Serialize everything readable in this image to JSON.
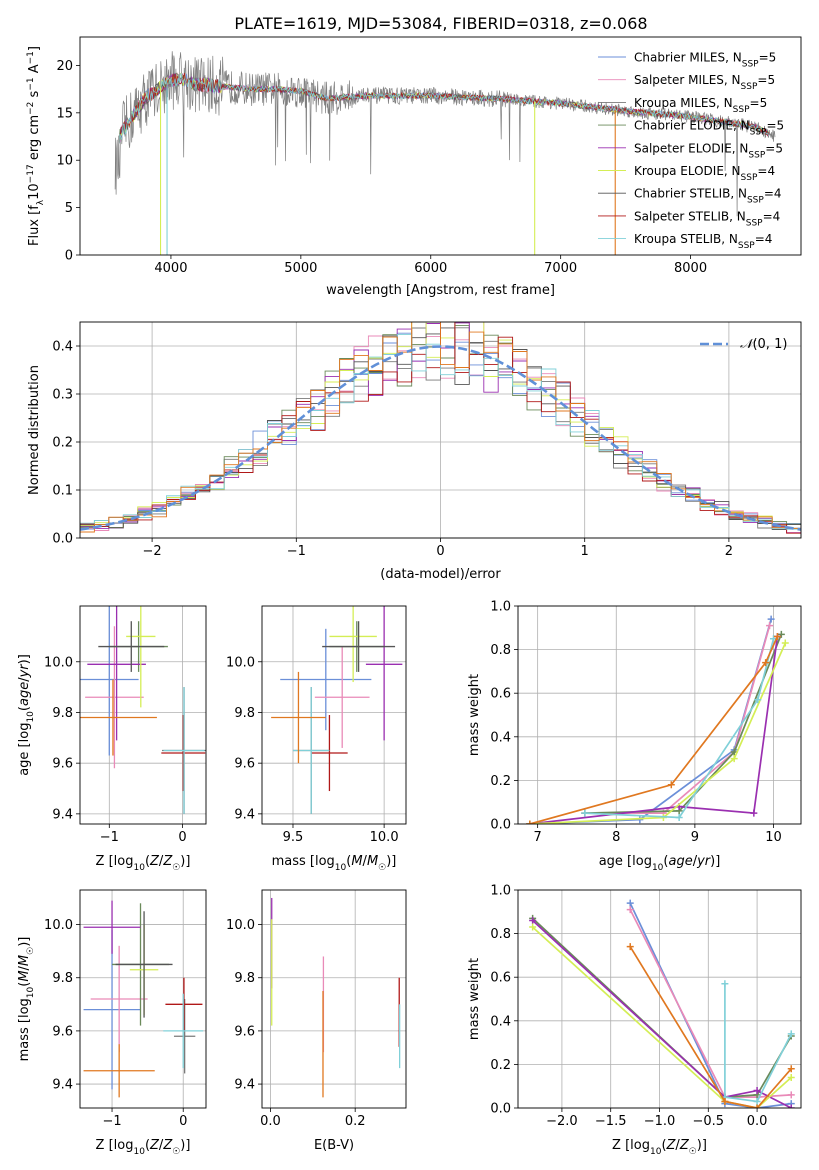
{
  "figure_title": "PLATE=1619, MJD=53084, FIBERID=0318, z=0.068",
  "colors": {
    "Chabrier MILES": "#6b8fd8",
    "Salpeter MILES": "#e98ab8",
    "Kroupa MILES": "#7a7a7a",
    "Chabrier ELODIE": "#6a8a5a",
    "Salpeter ELODIE": "#9a2fb0",
    "Kroupa ELODIE": "#d4ee55",
    "Chabrier STELIB": "#555555",
    "Salpeter STELIB": "#b01818",
    "Kroupa STELIB": "#80d0d8",
    "orange_extra": "#e07820",
    "normal_curve": "#6090d8"
  },
  "chart_data": [
    {
      "type": "line",
      "panel": "spectrum",
      "xlabel": "wavelength [Angstrom, rest frame]",
      "ylabel": "Flux [f_λ10^-17 erg cm^-2 s^-1 A^-1]",
      "xlim": [
        3300,
        8850
      ],
      "ylim": [
        0,
        23
      ],
      "xticks": [
        4000,
        5000,
        6000,
        7000,
        8000
      ],
      "yticks": [
        0,
        5,
        10,
        15,
        20
      ],
      "legend_position": "top-right",
      "legend": [
        {
          "label": "Chabrier MILES, N",
          "sub": "SSP",
          "suffix": "=5"
        },
        {
          "label": "Salpeter MILES, N",
          "sub": "SSP",
          "suffix": "=5"
        },
        {
          "label": "Kroupa MILES, N",
          "sub": "SSP",
          "suffix": "=5"
        },
        {
          "label": "Chabrier ELODIE, N",
          "sub": "SSP",
          "suffix": "=5"
        },
        {
          "label": "Salpeter ELODIE, N",
          "sub": "SSP",
          "suffix": "=5"
        },
        {
          "label": "Kroupa ELODIE, N",
          "sub": "SSP",
          "suffix": "=4"
        },
        {
          "label": "Chabrier STELIB, N",
          "sub": "SSP",
          "suffix": "=4"
        },
        {
          "label": "Salpeter STELIB, N",
          "sub": "SSP",
          "suffix": "=4"
        },
        {
          "label": "Kroupa STELIB, N",
          "sub": "SSP",
          "suffix": "=4"
        }
      ],
      "continuum": {
        "x": [
          3600,
          3700,
          3800,
          3900,
          4000,
          4100,
          4200,
          4400,
          4600,
          4800,
          5000,
          5200,
          5500,
          6000,
          6500,
          7000,
          7500,
          8000,
          8500,
          8650
        ],
        "y": [
          12.5,
          14.5,
          16.5,
          17.5,
          18.5,
          18.5,
          18.0,
          17.8,
          17.5,
          17.5,
          17.3,
          16.5,
          16.8,
          16.8,
          16.5,
          16.0,
          15.2,
          14.6,
          13.5,
          12.5
        ]
      }
    },
    {
      "type": "line",
      "panel": "residuals",
      "xlabel": "(data-model)/error",
      "ylabel": "Normed distribution",
      "xlim": [
        -2.5,
        2.5
      ],
      "ylim": [
        0,
        0.45
      ],
      "xticks": [
        -2,
        -1,
        0,
        1,
        2
      ],
      "yticks": [
        0.0,
        0.1,
        0.2,
        0.3,
        0.4
      ],
      "legend": "N(0,1)"
    },
    {
      "type": "scatter",
      "panel": "age-vs-metallicity",
      "xlabel": "Z [log10(Z/Z☉)]",
      "ylabel": "age  [log10(age/yr)]",
      "xlim": [
        -1.4,
        0.32
      ],
      "ylim": [
        9.36,
        10.22
      ],
      "xticks": [
        -1,
        0
      ],
      "yticks": [
        9.4,
        9.6,
        9.8,
        10.0
      ],
      "points": [
        {
          "series": "Chabrier MILES",
          "x": -1.0,
          "y": 9.93,
          "xerr": 0.4,
          "yerr": 0.3
        },
        {
          "series": "Salpeter MILES",
          "x": -0.93,
          "y": 9.86,
          "xerr": 0.4,
          "yerr": 0.28
        },
        {
          "series": "Kroupa MILES",
          "x": 0.02,
          "y": 9.65,
          "xerr": 0.3,
          "yerr": 0.25
        },
        {
          "series": "Chabrier ELODIE",
          "x": -0.6,
          "y": 10.06,
          "xerr": 0.4,
          "yerr": 0.1
        },
        {
          "series": "Salpeter ELODIE",
          "x": -0.9,
          "y": 9.99,
          "xerr": 0.4,
          "yerr": 0.3
        },
        {
          "series": "Kroupa ELODIE",
          "x": -0.57,
          "y": 10.1,
          "xerr": 0.2,
          "yerr": 0.28
        },
        {
          "series": "Chabrier STELIB",
          "x": -0.7,
          "y": 10.06,
          "xerr": 0.45,
          "yerr": 0.1
        },
        {
          "series": "Salpeter STELIB",
          "x": 0.01,
          "y": 9.64,
          "xerr": 0.3,
          "yerr": 0.15
        },
        {
          "series": "Kroupa STELIB",
          "x": 0.02,
          "y": 9.65,
          "xerr": 0.28,
          "yerr": 0.25
        },
        {
          "series": "orange_extra",
          "x": -0.95,
          "y": 9.78,
          "xerr": 0.6,
          "yerr": 0.15
        }
      ]
    },
    {
      "type": "scatter",
      "panel": "age-vs-mass",
      "xlabel": "mass [log10(M/M☉)]",
      "ylabel": "",
      "xlim": [
        9.33,
        10.12
      ],
      "ylim": [
        9.36,
        10.22
      ],
      "xticks": [
        9.5,
        10.0
      ],
      "yticks": [
        9.4,
        9.6,
        9.8,
        10.0
      ],
      "points": [
        {
          "series": "Chabrier MILES",
          "x": 9.68,
          "y": 9.93,
          "xerr": 0.25,
          "yerr": 0.2
        },
        {
          "series": "Salpeter MILES",
          "x": 9.77,
          "y": 9.86,
          "xerr": 0.15,
          "yerr": 0.2
        },
        {
          "series": "Kroupa MILES",
          "x": 9.6,
          "y": 9.65,
          "xerr": 0.1,
          "yerr": 0.25
        },
        {
          "series": "Chabrier ELODIE",
          "x": 9.85,
          "y": 10.06,
          "xerr": 0.15,
          "yerr": 0.1
        },
        {
          "series": "Salpeter ELODIE",
          "x": 10.0,
          "y": 9.99,
          "xerr": 0.1,
          "yerr": 0.3
        },
        {
          "series": "Kroupa ELODIE",
          "x": 9.83,
          "y": 10.1,
          "xerr": 0.13,
          "yerr": 0.18
        },
        {
          "series": "Chabrier STELIB",
          "x": 9.86,
          "y": 10.06,
          "xerr": 0.2,
          "yerr": 0.1
        },
        {
          "series": "Salpeter STELIB",
          "x": 9.7,
          "y": 9.64,
          "xerr": 0.1,
          "yerr": 0.15
        },
        {
          "series": "Kroupa STELIB",
          "x": 9.6,
          "y": 9.65,
          "xerr": 0.1,
          "yerr": 0.25
        },
        {
          "series": "orange_extra",
          "x": 9.53,
          "y": 9.78,
          "xerr": 0.15,
          "yerr": 0.18
        }
      ]
    },
    {
      "type": "line",
      "panel": "mass-weight-vs-age",
      "xlabel": "age  [log10(age/yr)]",
      "ylabel": "mass weight",
      "xlim": [
        6.75,
        10.35
      ],
      "ylim": [
        0,
        1.0
      ],
      "xticks": [
        7,
        8,
        9,
        10
      ],
      "yticks": [
        0.0,
        0.2,
        0.4,
        0.6,
        0.8,
        1.0
      ],
      "series": [
        {
          "name": "Chabrier MILES",
          "x": [
            6.9,
            8.3,
            9.5,
            9.97
          ],
          "y": [
            0.0,
            0.02,
            0.34,
            0.94
          ]
        },
        {
          "name": "Salpeter MILES",
          "x": [
            7.6,
            8.6,
            9.5,
            9.95
          ],
          "y": [
            0.05,
            0.05,
            0.33,
            0.91
          ]
        },
        {
          "name": "Chabrier ELODIE",
          "x": [
            7.6,
            8.8,
            9.5,
            10.1
          ],
          "y": [
            0.05,
            0.06,
            0.33,
            0.87
          ]
        },
        {
          "name": "Salpeter ELODIE",
          "x": [
            6.9,
            8.8,
            9.75,
            10.05
          ],
          "y": [
            0.0,
            0.08,
            0.05,
            0.86
          ]
        },
        {
          "name": "Kroupa ELODIE",
          "x": [
            6.9,
            8.6,
            9.5,
            10.15
          ],
          "y": [
            0.0,
            0.03,
            0.3,
            0.83
          ]
        },
        {
          "name": "Kroupa STELIB",
          "x": [
            7.6,
            8.8,
            9.8,
            10.0
          ],
          "y": [
            0.05,
            0.03,
            0.57,
            0.85
          ]
        },
        {
          "name": "orange_extra",
          "x": [
            6.9,
            8.7,
            9.9,
            10.05
          ],
          "y": [
            0.0,
            0.18,
            0.74,
            0.86
          ]
        }
      ]
    },
    {
      "type": "scatter",
      "panel": "mass-vs-metallicity",
      "xlabel": "Z [log10(Z/Z☉)]",
      "ylabel": "mass [log10(M/M☉)]",
      "xlim": [
        -1.45,
        0.32
      ],
      "ylim": [
        9.31,
        10.13
      ],
      "xticks": [
        -1,
        0
      ],
      "yticks": [
        9.4,
        9.6,
        9.8,
        10.0
      ],
      "points": [
        {
          "series": "Chabrier MILES",
          "x": -1.0,
          "y": 9.68,
          "xerr": 0.4,
          "yerr": 0.3
        },
        {
          "series": "Salpeter MILES",
          "x": -0.9,
          "y": 9.72,
          "xerr": 0.4,
          "yerr": 0.2
        },
        {
          "series": "Kroupa MILES",
          "x": 0.02,
          "y": 9.58,
          "xerr": 0.15,
          "yerr": 0.14
        },
        {
          "series": "Chabrier ELODIE",
          "x": -0.6,
          "y": 9.85,
          "xerr": 0.4,
          "yerr": 0.23
        },
        {
          "series": "Salpeter ELODIE",
          "x": -1.0,
          "y": 9.99,
          "xerr": 0.4,
          "yerr": 0.1
        },
        {
          "series": "Kroupa ELODIE",
          "x": -0.55,
          "y": 9.83,
          "xerr": 0.2,
          "yerr": 0.17
        },
        {
          "series": "Chabrier STELIB",
          "x": -0.55,
          "y": 9.85,
          "xerr": 0.4,
          "yerr": 0.2
        },
        {
          "series": "Salpeter STELIB",
          "x": 0.01,
          "y": 9.7,
          "xerr": 0.26,
          "yerr": 0.1
        },
        {
          "series": "Kroupa STELIB",
          "x": 0.0,
          "y": 9.6,
          "xerr": 0.28,
          "yerr": 0.14
        },
        {
          "series": "orange_extra",
          "x": -0.9,
          "y": 9.45,
          "xerr": 0.5,
          "yerr": 0.1
        }
      ]
    },
    {
      "type": "scatter",
      "panel": "mass-vs-ebv",
      "xlabel": "E(B-V)",
      "ylabel": "",
      "xlim": [
        -0.02,
        0.32
      ],
      "ylim": [
        9.31,
        10.13
      ],
      "xticks": [
        0.0,
        0.2
      ],
      "yticks": [
        9.4,
        9.6,
        9.8,
        10.0
      ],
      "points": [
        {
          "series": "Salpeter ELODIE",
          "x": 0.003,
          "y": 9.93,
          "yerr": 0.17
        },
        {
          "series": "Kroupa ELODIE",
          "x": 0.003,
          "y": 9.82,
          "yerr": 0.2
        },
        {
          "series": "Salpeter MILES",
          "x": 0.125,
          "y": 9.7,
          "yerr": 0.18
        },
        {
          "series": "orange_extra",
          "x": 0.124,
          "y": 9.55,
          "yerr": 0.2
        },
        {
          "series": "Salpeter STELIB",
          "x": 0.304,
          "y": 9.67,
          "yerr": 0.13
        },
        {
          "series": "Kroupa STELIB",
          "x": 0.305,
          "y": 9.58,
          "yerr": 0.12
        }
      ]
    },
    {
      "type": "line",
      "panel": "mass-weight-vs-metallicity",
      "xlabel": "Z [log10(Z/Z☉)]",
      "ylabel": "mass weight",
      "xlim": [
        -2.45,
        0.45
      ],
      "ylim": [
        0,
        1.0
      ],
      "xticks": [
        -2.0,
        -1.5,
        -1.0,
        -0.5,
        0.0
      ],
      "yticks": [
        0.0,
        0.2,
        0.4,
        0.6,
        0.8,
        1.0
      ],
      "series": [
        {
          "name": "Chabrier MILES",
          "x": [
            -1.3,
            -0.33,
            0.0,
            0.35
          ],
          "y": [
            0.94,
            0.02,
            0.0,
            0.02
          ]
        },
        {
          "name": "Salpeter MILES",
          "x": [
            -1.3,
            -0.33,
            0.0,
            0.35
          ],
          "y": [
            0.91,
            0.05,
            0.05,
            0.06
          ]
        },
        {
          "name": "Chabrier ELODIE",
          "x": [
            -2.3,
            -0.33,
            0.0,
            0.35
          ],
          "y": [
            0.87,
            0.05,
            0.06,
            0.33
          ]
        },
        {
          "name": "Salpeter ELODIE",
          "x": [
            -2.3,
            -0.33,
            0.0,
            0.35
          ],
          "y": [
            0.86,
            0.05,
            0.08,
            0.0
          ]
        },
        {
          "name": "Kroupa ELODIE",
          "x": [
            -2.3,
            -0.33,
            0.0,
            0.35
          ],
          "y": [
            0.83,
            0.03,
            0.0,
            0.14
          ]
        },
        {
          "name": "Kroupa STELIB",
          "x": [
            -0.33,
            -0.33,
            0.0,
            0.35
          ],
          "y": [
            0.57,
            0.05,
            0.03,
            0.34
          ]
        },
        {
          "name": "orange_extra",
          "x": [
            -1.3,
            -0.33,
            0.0,
            0.35
          ],
          "y": [
            0.74,
            0.03,
            0.0,
            0.18
          ]
        }
      ]
    }
  ]
}
